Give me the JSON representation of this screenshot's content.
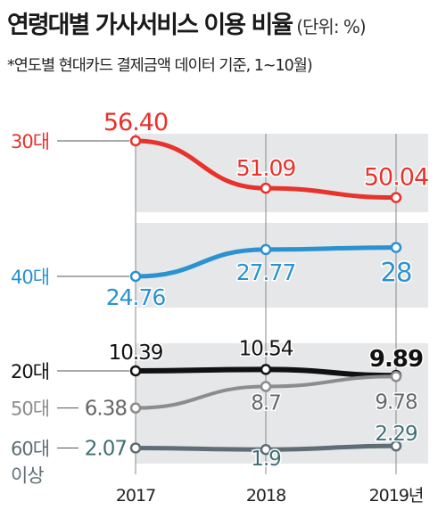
{
  "title": "연령대별 가사서비스 이용 비율",
  "unit_note": "(단위: %)",
  "subtitle": "*연도별 현대카드 결제금액 데이터 기준, 1~10월)",
  "chart_data": {
    "type": "line",
    "x": [
      "2017",
      "2018",
      "2019년"
    ],
    "series": [
      {
        "name": "30대",
        "values": [
          56.4,
          51.09,
          50.04
        ],
        "labels": [
          "56.40",
          "51.09",
          "50.04"
        ],
        "color": "#e8322c"
      },
      {
        "name": "40대",
        "values": [
          24.76,
          27.77,
          28
        ],
        "labels": [
          "24.76",
          "27.77",
          "28"
        ],
        "color": "#2a92cf"
      },
      {
        "name": "20대",
        "values": [
          10.39,
          10.54,
          9.89
        ],
        "labels": [
          "10.39",
          "10.54",
          "9.89"
        ],
        "color": "#111111"
      },
      {
        "name": "50대",
        "values": [
          6.38,
          8.7,
          9.78
        ],
        "labels": [
          "6.38",
          "8.7",
          "9.78"
        ],
        "color": "#8c8c8c"
      },
      {
        "name": "60대 이상",
        "values": [
          2.07,
          1.9,
          2.29
        ],
        "labels": [
          "2.07",
          "1.9",
          "2.29"
        ],
        "color": "#5e6e74"
      }
    ],
    "legend_placement": "left, inline with lines",
    "grid": false
  }
}
